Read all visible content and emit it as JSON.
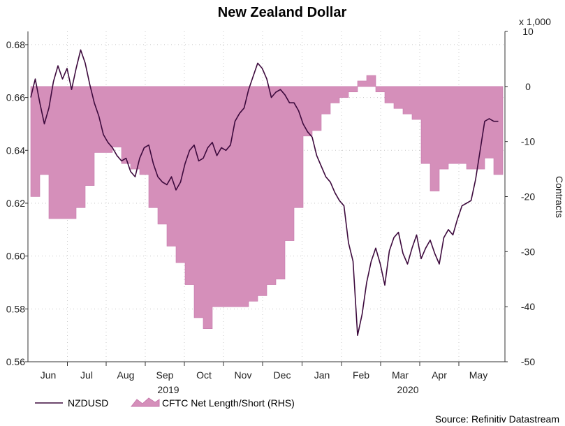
{
  "chart_data": {
    "type": "line+area",
    "title": "New Zealand Dollar",
    "source": "Source: Refinitiv Datastream",
    "left_axis": {
      "ylim": [
        0.56,
        0.685
      ],
      "ticks": [
        "0.56",
        "0.58",
        "0.60",
        "0.62",
        "0.64",
        "0.66",
        "0.68"
      ]
    },
    "right_axis": {
      "ylim": [
        -50,
        10
      ],
      "ticks": [
        "-50",
        "-40",
        "-30",
        "-20",
        "-10",
        "0",
        "10"
      ],
      "label": "Contracts",
      "scale_label": "x 1,000"
    },
    "x_axis": {
      "months": [
        "Jun",
        "Jul",
        "Aug",
        "Sep",
        "Oct",
        "Nov",
        "Dec",
        "Jan",
        "Feb",
        "Mar",
        "Apr",
        "May"
      ],
      "years": [
        "2019",
        "2020"
      ],
      "start_week": 0,
      "end_week": 52
    },
    "legend": {
      "line_label": "NZDUSD",
      "area_label": "CFTC Net Length/Short (RHS)"
    },
    "colors": {
      "line": "#3d0a3d",
      "area": "#d58fba",
      "area_edge": "#c77aac",
      "grid": "#c8c8c8",
      "axis": "#333333"
    },
    "series": [
      {
        "name": "NZDUSD",
        "axis": "left",
        "x": [
          0,
          0.5,
          1,
          1.5,
          2,
          2.5,
          3,
          3.5,
          4,
          4.5,
          5,
          5.5,
          6,
          6.5,
          7,
          7.5,
          8,
          8.5,
          9,
          9.5,
          10,
          10.5,
          11,
          11.5,
          12,
          12.5,
          13,
          13.5,
          14,
          14.5,
          15,
          15.5,
          16,
          16.5,
          17,
          17.5,
          18,
          18.5,
          19,
          19.5,
          20,
          20.5,
          21,
          21.5,
          22,
          22.5,
          23,
          23.5,
          24,
          24.5,
          25,
          25.5,
          26,
          26.5,
          27,
          27.5,
          28,
          28.5,
          29,
          29.5,
          30,
          30.5,
          31,
          31.5,
          32,
          32.5,
          33,
          33.5,
          34,
          34.5,
          35,
          35.5,
          36,
          36.5,
          37,
          37.5,
          38,
          38.5,
          39,
          39.5,
          40,
          40.5,
          41,
          41.5,
          42,
          42.5,
          43,
          43.5,
          44,
          44.5,
          45,
          45.5,
          46,
          46.5,
          47,
          47.5,
          48,
          48.5,
          49,
          49.5,
          50,
          50.5,
          51,
          51.5,
          52
        ],
        "values": [
          0.66,
          0.667,
          0.658,
          0.65,
          0.656,
          0.666,
          0.672,
          0.667,
          0.671,
          0.663,
          0.671,
          0.678,
          0.673,
          0.665,
          0.658,
          0.653,
          0.646,
          0.643,
          0.641,
          0.638,
          0.636,
          0.637,
          0.632,
          0.63,
          0.637,
          0.641,
          0.642,
          0.635,
          0.63,
          0.628,
          0.627,
          0.63,
          0.625,
          0.628,
          0.635,
          0.64,
          0.642,
          0.636,
          0.637,
          0.641,
          0.643,
          0.638,
          0.641,
          0.64,
          0.642,
          0.651,
          0.654,
          0.656,
          0.663,
          0.668,
          0.673,
          0.671,
          0.667,
          0.66,
          0.662,
          0.663,
          0.661,
          0.658,
          0.658,
          0.655,
          0.65,
          0.647,
          0.645,
          0.638,
          0.634,
          0.63,
          0.628,
          0.624,
          0.621,
          0.619,
          0.605,
          0.598,
          0.57,
          0.578,
          0.59,
          0.598,
          0.603,
          0.597,
          0.589,
          0.602,
          0.607,
          0.609,
          0.601,
          0.597,
          0.603,
          0.608,
          0.599,
          0.603,
          0.606,
          0.601,
          0.597,
          0.607,
          0.61,
          0.608,
          0.614,
          0.619,
          0.62,
          0.621,
          0.629,
          0.64,
          0.651,
          0.652,
          0.651,
          0.651,
          0.651
        ],
        "visible_end_week": 51.5
      },
      {
        "name": "CFTC Net Length/Short (RHS)",
        "axis": "right",
        "step": true,
        "x": [
          0,
          1,
          2,
          3,
          4,
          5,
          6,
          7,
          8,
          9,
          10,
          11,
          12,
          13,
          14,
          15,
          16,
          17,
          18,
          19,
          20,
          21,
          22,
          23,
          24,
          25,
          26,
          27,
          28,
          29,
          30,
          31,
          32,
          33,
          34,
          35,
          36,
          37,
          38,
          39,
          40,
          41,
          42,
          43,
          44,
          45,
          46,
          47,
          48,
          49,
          50,
          51
        ],
        "values": [
          -20,
          -16,
          -24,
          -24,
          -24,
          -22,
          -18,
          -12,
          -12,
          -11,
          -14,
          -15,
          -16,
          -22,
          -25,
          -29,
          -32,
          -36,
          -42,
          -44,
          -40,
          -40,
          -40,
          -40,
          -39,
          -38,
          -36,
          -35,
          -28,
          -22,
          -9,
          -8,
          -5,
          -3,
          -2,
          -1,
          1,
          2,
          -1,
          -3,
          -4,
          -5,
          -6,
          -14,
          -19,
          -15,
          -14,
          -14,
          -15,
          -15,
          -13,
          -16
        ]
      }
    ]
  }
}
